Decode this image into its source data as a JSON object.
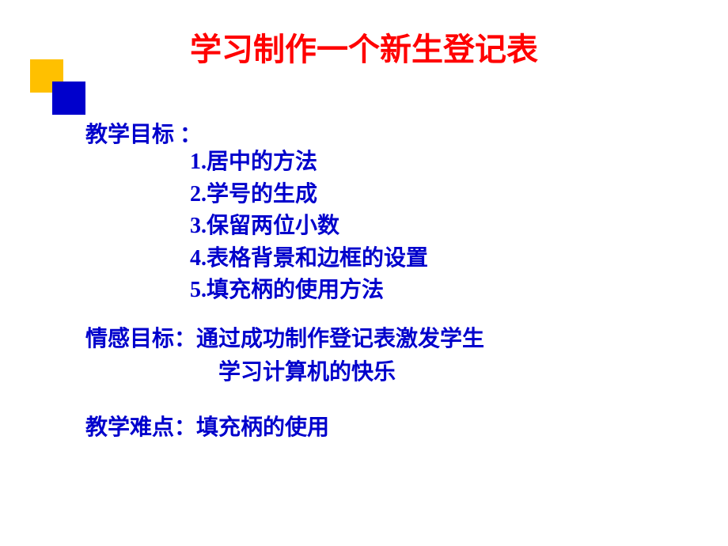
{
  "slide": {
    "title": "学习制作一个新生登记表",
    "title_color": "#ff0000",
    "title_fontsize": 40,
    "body_color": "#0000cc",
    "body_fontsize": 28,
    "background_color": "#ffffff",
    "decoration": {
      "rect1_color": "#ffc000",
      "rect2_color": "#0000cc"
    },
    "section1": {
      "label": "教学目标 ：",
      "items": [
        "1.居中的方法",
        "2.学号的生成",
        "3.保留两位小数",
        "4.表格背景和边框的设置",
        "5.填充柄的使用方法"
      ]
    },
    "section2": {
      "label": "情感目标：",
      "line1": "通过成功制作登记表激发学生",
      "line2": "学习计算机的快乐"
    },
    "section3": {
      "label": "教学难点：",
      "content": "填充柄的使用"
    }
  }
}
